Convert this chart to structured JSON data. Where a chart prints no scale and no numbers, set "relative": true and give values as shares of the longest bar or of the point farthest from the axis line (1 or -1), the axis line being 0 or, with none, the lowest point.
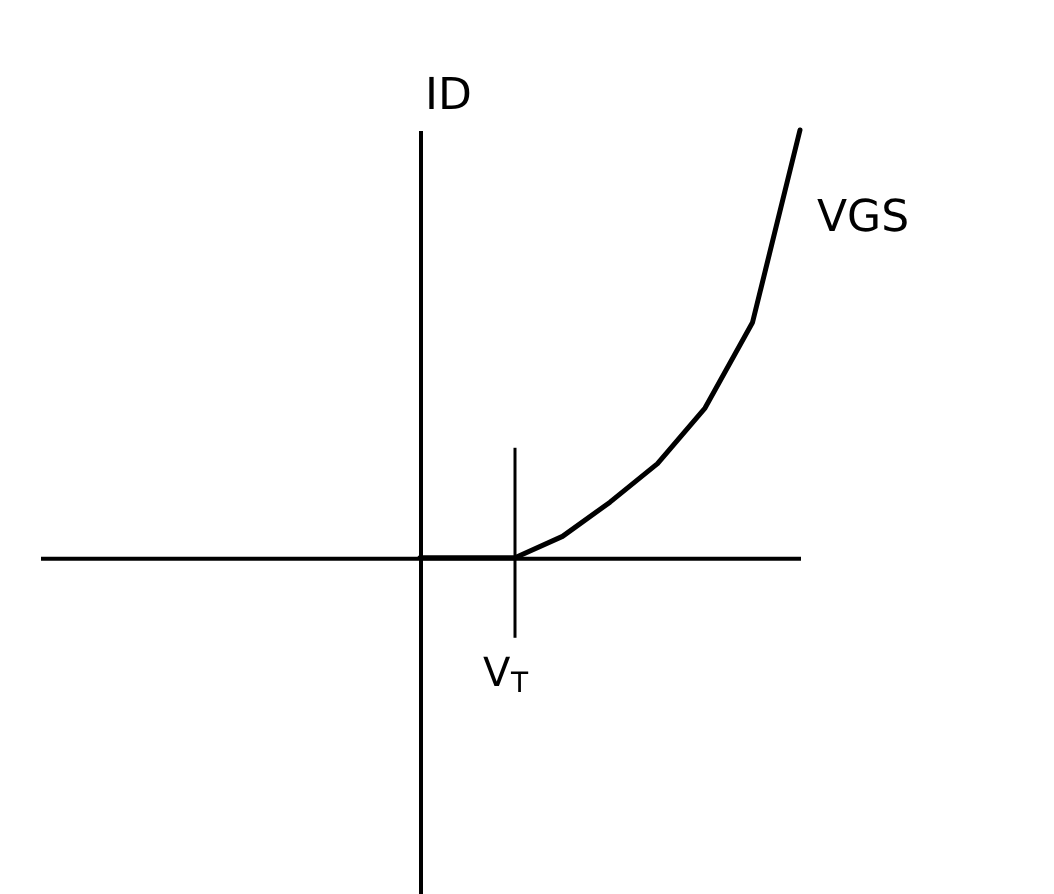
{
  "chart_data": {
    "type": "line",
    "relative": true,
    "xlabel": "VGS",
    "ylabel": "ID",
    "categories": [
      null,
      null,
      null,
      null,
      null,
      null,
      null,
      null,
      null,
      null,
      null,
      null,
      null,
      null,
      null,
      null,
      null
    ],
    "series": [
      {
        "color": "#000000",
        "values": [
          null,
          null,
          null,
          null,
          null,
          null,
          null,
          null,
          0,
          0,
          0,
          0.05,
          0.13,
          0.22,
          0.35,
          0.55,
          1
        ]
      }
    ],
    "annotations": [
      "V$_{T}$"
    ],
    "marker": "none",
    "line_style": "solid"
  }
}
